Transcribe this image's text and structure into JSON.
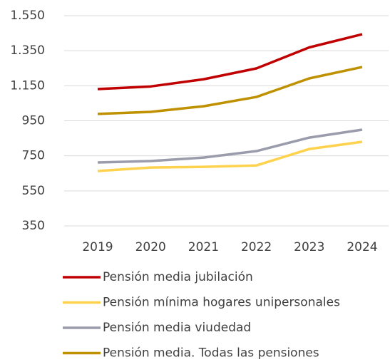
{
  "chart_data": {
    "type": "line",
    "categories": [
      "2019",
      "2020",
      "2021",
      "2022",
      "2023",
      "2024"
    ],
    "series": [
      {
        "name": "Pensión media jubilación",
        "color": "#c00000",
        "values": [
          1131,
          1146,
          1187,
          1249,
          1369,
          1444
        ]
      },
      {
        "name": "Pensión mínima hogares unipersonales",
        "color": "#ffd24d",
        "values": [
          663,
          683,
          687,
          695,
          789,
          830
        ]
      },
      {
        "name": "Pensión media viudedad",
        "color": "#9a9cab",
        "values": [
          712,
          720,
          740,
          777,
          854,
          899
        ]
      },
      {
        "name": "Pensión media. Todas las pensiones",
        "color": "#bf9000",
        "values": [
          989,
          1001,
          1033,
          1086,
          1192,
          1257
        ]
      }
    ],
    "ylim": [
      350,
      1550
    ],
    "yticks": [
      350,
      550,
      750,
      950,
      {
        "value": 1150,
        "label": "1.150"
      },
      {
        "value": 1350,
        "label": "1.350"
      },
      {
        "value": 1550,
        "label": "1.550"
      }
    ],
    "grid": true
  }
}
